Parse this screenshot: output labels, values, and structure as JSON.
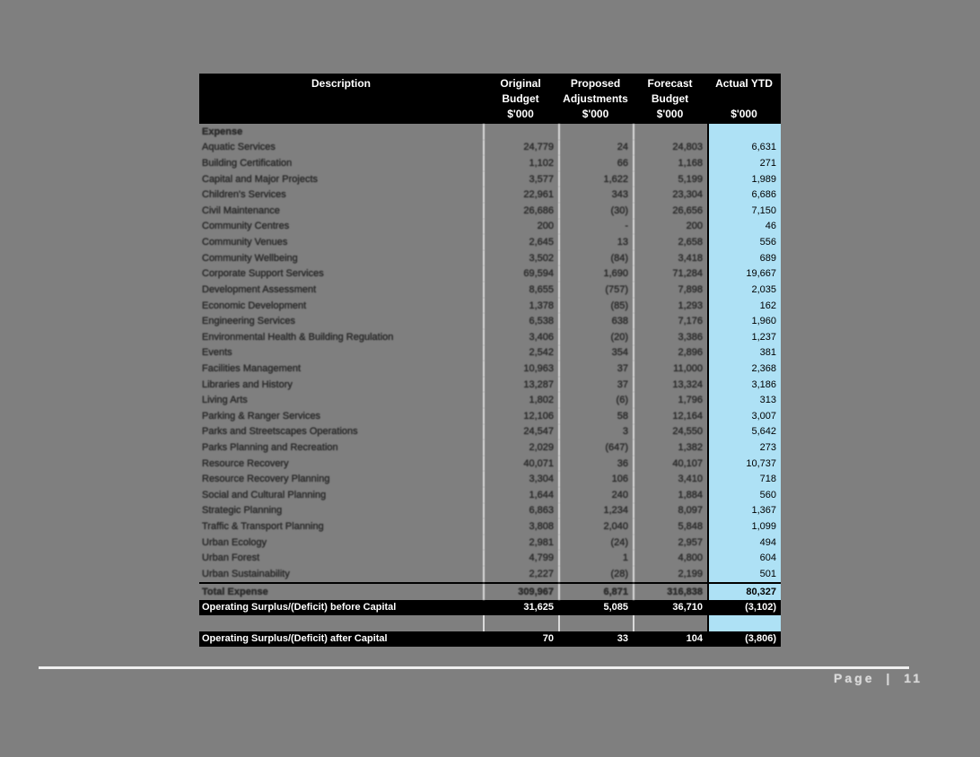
{
  "page": {
    "background_color": "#7f7f7f",
    "footer": {
      "page_label": "Page | 11"
    }
  },
  "colors": {
    "header_bg": "#000000",
    "header_text": "#ffffff",
    "actual_ytd_column_bg": "#aee1f5",
    "black_row_bg": "#000000",
    "gridline": "#dadada"
  },
  "table": {
    "header": {
      "columns": [
        {
          "label1": "Description",
          "label2": "",
          "unit": ""
        },
        {
          "label1": "Original",
          "label2": "Budget",
          "unit": "$'000"
        },
        {
          "label1": "Proposed",
          "label2": "Adjustments",
          "unit": "$'000"
        },
        {
          "label1": "Forecast",
          "label2": "Budget",
          "unit": "$'000"
        },
        {
          "label1": "Actual YTD",
          "label2": "",
          "unit": "$'000"
        }
      ]
    },
    "rows": [
      {
        "type": "section",
        "desc": "Expense",
        "orig": "",
        "adj": "",
        "fcst": "",
        "ytd": ""
      },
      {
        "type": "data",
        "desc": "Aquatic Services",
        "orig": "24,779",
        "adj": "24",
        "fcst": "24,803",
        "ytd": "6,631"
      },
      {
        "type": "data",
        "desc": "Building Certification",
        "orig": "1,102",
        "adj": "66",
        "fcst": "1,168",
        "ytd": "271"
      },
      {
        "type": "data",
        "desc": "Capital and Major Projects",
        "orig": "3,577",
        "adj": "1,622",
        "fcst": "5,199",
        "ytd": "1,989"
      },
      {
        "type": "data",
        "desc": "Children's Services",
        "orig": "22,961",
        "adj": "343",
        "fcst": "23,304",
        "ytd": "6,686"
      },
      {
        "type": "data",
        "desc": "Civil Maintenance",
        "orig": "26,686",
        "adj": "(30)",
        "fcst": "26,656",
        "ytd": "7,150"
      },
      {
        "type": "data",
        "desc": "Community Centres",
        "orig": "200",
        "adj": "-",
        "fcst": "200",
        "ytd": "46"
      },
      {
        "type": "data",
        "desc": "Community Venues",
        "orig": "2,645",
        "adj": "13",
        "fcst": "2,658",
        "ytd": "556"
      },
      {
        "type": "data",
        "desc": "Community Wellbeing",
        "orig": "3,502",
        "adj": "(84)",
        "fcst": "3,418",
        "ytd": "689"
      },
      {
        "type": "data",
        "desc": "Corporate Support Services",
        "orig": "69,594",
        "adj": "1,690",
        "fcst": "71,284",
        "ytd": "19,667"
      },
      {
        "type": "data",
        "desc": "Development Assessment",
        "orig": "8,655",
        "adj": "(757)",
        "fcst": "7,898",
        "ytd": "2,035"
      },
      {
        "type": "data",
        "desc": "Economic Development",
        "orig": "1,378",
        "adj": "(85)",
        "fcst": "1,293",
        "ytd": "162"
      },
      {
        "type": "data",
        "desc": "Engineering Services",
        "orig": "6,538",
        "adj": "638",
        "fcst": "7,176",
        "ytd": "1,960"
      },
      {
        "type": "data",
        "desc": "Environmental Health & Building Regulation",
        "orig": "3,406",
        "adj": "(20)",
        "fcst": "3,386",
        "ytd": "1,237"
      },
      {
        "type": "data",
        "desc": "Events",
        "orig": "2,542",
        "adj": "354",
        "fcst": "2,896",
        "ytd": "381"
      },
      {
        "type": "data",
        "desc": "Facilities Management",
        "orig": "10,963",
        "adj": "37",
        "fcst": "11,000",
        "ytd": "2,368"
      },
      {
        "type": "data",
        "desc": "Libraries and History",
        "orig": "13,287",
        "adj": "37",
        "fcst": "13,324",
        "ytd": "3,186"
      },
      {
        "type": "data",
        "desc": "Living Arts",
        "orig": "1,802",
        "adj": "(6)",
        "fcst": "1,796",
        "ytd": "313"
      },
      {
        "type": "data",
        "desc": "Parking & Ranger Services",
        "orig": "12,106",
        "adj": "58",
        "fcst": "12,164",
        "ytd": "3,007"
      },
      {
        "type": "data",
        "desc": "Parks and Streetscapes Operations",
        "orig": "24,547",
        "adj": "3",
        "fcst": "24,550",
        "ytd": "5,642"
      },
      {
        "type": "data",
        "desc": "Parks Planning and Recreation",
        "orig": "2,029",
        "adj": "(647)",
        "fcst": "1,382",
        "ytd": "273"
      },
      {
        "type": "data",
        "desc": "Resource Recovery",
        "orig": "40,071",
        "adj": "36",
        "fcst": "40,107",
        "ytd": "10,737"
      },
      {
        "type": "data",
        "desc": "Resource Recovery Planning",
        "orig": "3,304",
        "adj": "106",
        "fcst": "3,410",
        "ytd": "718"
      },
      {
        "type": "data",
        "desc": "Social and Cultural Planning",
        "orig": "1,644",
        "adj": "240",
        "fcst": "1,884",
        "ytd": "560"
      },
      {
        "type": "data",
        "desc": "Strategic Planning",
        "orig": "6,863",
        "adj": "1,234",
        "fcst": "8,097",
        "ytd": "1,367"
      },
      {
        "type": "data",
        "desc": "Traffic & Transport Planning",
        "orig": "3,808",
        "adj": "2,040",
        "fcst": "5,848",
        "ytd": "1,099"
      },
      {
        "type": "data",
        "desc": "Urban Ecology",
        "orig": "2,981",
        "adj": "(24)",
        "fcst": "2,957",
        "ytd": "494"
      },
      {
        "type": "data",
        "desc": "Urban Forest",
        "orig": "4,799",
        "adj": "1",
        "fcst": "4,800",
        "ytd": "604"
      },
      {
        "type": "data",
        "desc": "Urban Sustainability",
        "orig": "2,227",
        "adj": "(28)",
        "fcst": "2,199",
        "ytd": "501"
      },
      {
        "type": "total",
        "desc": "Total Expense",
        "orig": "309,967",
        "adj": "6,871",
        "fcst": "316,838",
        "ytd": "80,327"
      },
      {
        "type": "black",
        "desc": "Operating Surplus/(Deficit) before Capital",
        "orig": "31,625",
        "adj": "5,085",
        "fcst": "36,710",
        "ytd": "(3,102)"
      },
      {
        "type": "blank",
        "desc": "",
        "orig": "",
        "adj": "",
        "fcst": "",
        "ytd": ""
      },
      {
        "type": "black",
        "desc": "Operating Surplus/(Deficit) after Capital",
        "orig": "70",
        "adj": "33",
        "fcst": "104",
        "ytd": "(3,806)"
      }
    ]
  }
}
